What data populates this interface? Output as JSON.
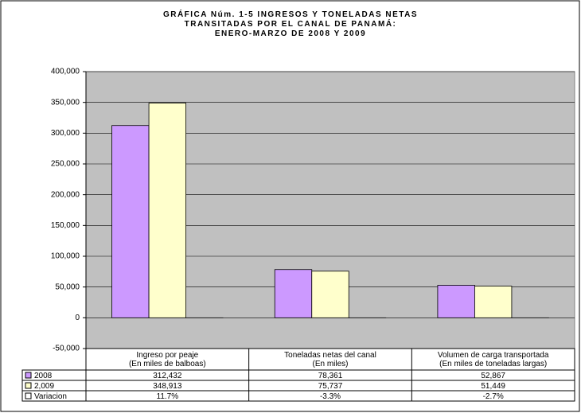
{
  "chart_data": {
    "type": "bar",
    "title": "GRÁFICA Núm. 1-5  INGRESOS Y TONELADAS NETAS\nTRANSITADAS POR EL CANAL DE PANAMÁ:\nENERO-MARZO DE 2008 Y 2009",
    "categories": [
      "Ingreso por peaje\n(En miles de balboas)",
      "Toneladas netas del canal\n(En miles)",
      "Volumen de carga transportada\n(En miles de toneladas largas)"
    ],
    "series": [
      {
        "name": "2008",
        "color": "#cc99ff",
        "values": [
          312432,
          78361,
          52867
        ],
        "value_labels": [
          "312,432",
          "78,361",
          "52,867"
        ]
      },
      {
        "name": "2,009",
        "color": "#ffffcc",
        "values": [
          348913,
          75737,
          51449
        ],
        "value_labels": [
          "348,913",
          "75,737",
          "51,449"
        ]
      },
      {
        "name": "Variacion",
        "color": "#ffffff",
        "values": [
          11.7,
          -3.3,
          -2.7
        ],
        "value_labels": [
          "11.7%",
          "-3.3%",
          "-2.7%"
        ]
      }
    ],
    "ylim": [
      -50000,
      400000
    ],
    "yticks": [
      {
        "value": -50000,
        "label": "-50,000"
      },
      0,
      {
        "value": 50000,
        "label": "50,000"
      },
      {
        "value": 100000,
        "label": "100,000"
      },
      {
        "value": 150000,
        "label": "150,000"
      },
      {
        "value": 200000,
        "label": "200,000"
      },
      {
        "value": 250000,
        "label": "250,000"
      },
      {
        "value": 300000,
        "label": "300,000"
      },
      {
        "value": 350000,
        "label": "350,000"
      },
      {
        "value": 400000,
        "label": "400,000"
      }
    ],
    "grid": true
  }
}
